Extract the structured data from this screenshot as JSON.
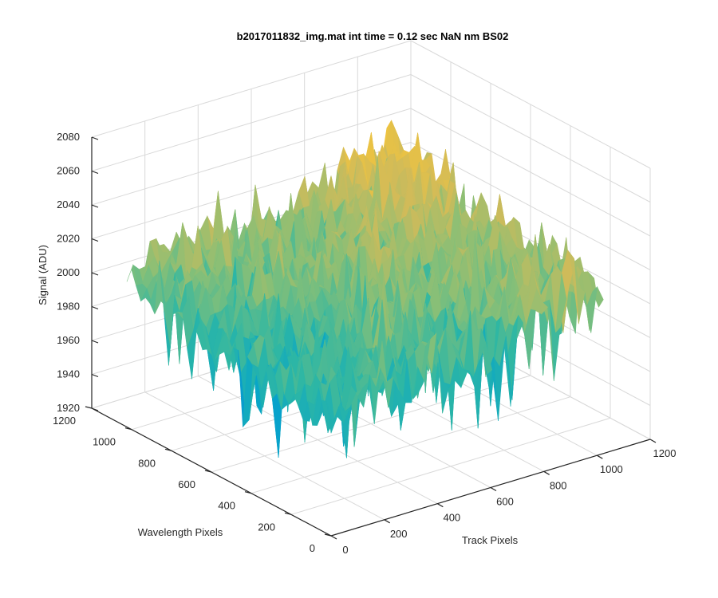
{
  "chart_data": {
    "type": "surface",
    "title": "b2017011832_img.mat int time = 0.12 sec  NaN nm BS02",
    "xlabel": "Track Pixels",
    "ylabel": "Wavelength Pixels",
    "zlabel": "Signal (ADU)",
    "xlim": [
      0,
      1200
    ],
    "ylim": [
      0,
      1200
    ],
    "zlim": [
      1920,
      2080
    ],
    "x_ticks": [
      0,
      200,
      400,
      600,
      800,
      1000,
      1200
    ],
    "y_ticks": [
      0,
      200,
      400,
      600,
      800,
      1000,
      1200
    ],
    "z_ticks": [
      1920,
      1940,
      1960,
      1980,
      2000,
      2020,
      2040,
      2060,
      2080
    ],
    "x_extent": [
      0,
      1024
    ],
    "y_extent": [
      0,
      1024
    ],
    "z_mean_range": [
      1972,
      2034
    ],
    "z_noise_range": [
      1935,
      2060
    ],
    "colormap": "parula",
    "grid": true
  }
}
